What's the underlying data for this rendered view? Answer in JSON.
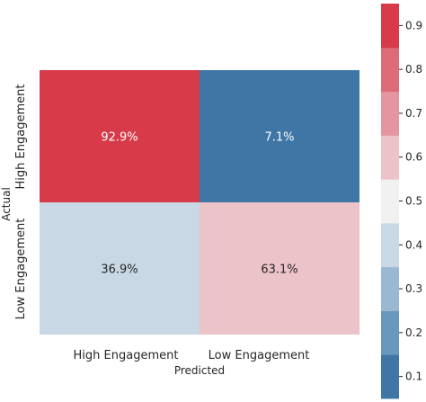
{
  "chart_data": {
    "type": "heatmap",
    "title": "",
    "xlabel": "Predicted",
    "ylabel": "Actual",
    "x_categories": [
      "High Engagement",
      "Low Engagement"
    ],
    "y_categories": [
      "High Engagement",
      "Low Engagement"
    ],
    "values": [
      [
        0.929,
        0.071
      ],
      [
        0.369,
        0.631
      ]
    ],
    "cell_labels": [
      [
        "92.9%",
        "7.1%"
      ],
      [
        "36.9%",
        "63.1%"
      ]
    ],
    "colorbar": {
      "range": [
        0.05,
        0.95
      ],
      "ticks": [
        0.1,
        0.2,
        0.3,
        0.4,
        0.5,
        0.6,
        0.7,
        0.8,
        0.9
      ],
      "tick_labels": [
        "0.1",
        "0.2",
        "0.3",
        "0.4",
        "0.5",
        "0.6",
        "0.7",
        "0.8",
        "0.9"
      ],
      "colors_bottom_to_top": [
        "#3f76a6",
        "#6a98bd",
        "#9ab8d1",
        "#c8d8e4",
        "#f2f1f1",
        "#ebc3c9",
        "#e3969f",
        "#dd6c78",
        "#d73b49"
      ]
    },
    "cell_colors": [
      [
        "#d73b49",
        "#3f76a6"
      ],
      [
        "#c8d8e4",
        "#ebc3c9"
      ]
    ],
    "cell_text_colors": [
      [
        "#ffffff",
        "#ffffff"
      ],
      [
        "#262626",
        "#262626"
      ]
    ]
  }
}
